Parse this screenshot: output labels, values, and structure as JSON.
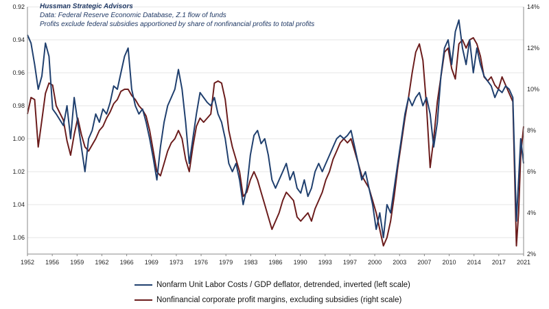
{
  "notes": {
    "source_name": "Hussman Strategic Advisors",
    "data_line": "Data: Federal Reserve Economic Database, Z.1 flow of funds",
    "profit_note": "Profits exclude federal subsidies apportioned by share of nonfinancial profits to total profits"
  },
  "colors": {
    "ulc": "#1f3f6e",
    "margin": "#6b1c1c",
    "grid": "#e6e6e6",
    "axis": "#888888"
  },
  "chart_data": {
    "type": "line",
    "x_ticks": [
      "1952",
      "1956",
      "1959",
      "1962",
      "1966",
      "1969",
      "1973",
      "1976",
      "1979",
      "1983",
      "1986",
      "1990",
      "1993",
      "1997",
      "2000",
      "2003",
      "2007",
      "2010",
      "2014",
      "2017",
      "2021"
    ],
    "x_range": [
      1952,
      2021
    ],
    "left_axis": {
      "label": "",
      "ticks": [
        "0.92",
        "0.94",
        "0.96",
        "0.98",
        "1.00",
        "1.02",
        "1.04",
        "1.06"
      ],
      "range": [
        0.92,
        1.07
      ],
      "inverted": true
    },
    "right_axis": {
      "label": "",
      "ticks": [
        "2%",
        "4%",
        "6%",
        "8%",
        "10%",
        "12%",
        "14%"
      ],
      "range": [
        2,
        14
      ]
    },
    "series": [
      {
        "name": "Nonfarm Unit Labor Costs / GDP deflator, detrended, inverted (left scale)",
        "axis": "left",
        "points": [
          [
            1952,
            0.937
          ],
          [
            1952.5,
            0.942
          ],
          [
            1953,
            0.955
          ],
          [
            1953.5,
            0.97
          ],
          [
            1954,
            0.962
          ],
          [
            1954.5,
            0.942
          ],
          [
            1955,
            0.95
          ],
          [
            1955.5,
            0.982
          ],
          [
            1956,
            0.985
          ],
          [
            1957,
            0.992
          ],
          [
            1957.5,
            0.98
          ],
          [
            1958,
            1.0
          ],
          [
            1958.5,
            0.975
          ],
          [
            1959,
            0.99
          ],
          [
            1959.5,
            1.005
          ],
          [
            1960,
            1.02
          ],
          [
            1960.5,
            1.0
          ],
          [
            1961,
            0.995
          ],
          [
            1961.5,
            0.985
          ],
          [
            1962,
            0.99
          ],
          [
            1962.5,
            0.982
          ],
          [
            1963,
            0.985
          ],
          [
            1963.5,
            0.978
          ],
          [
            1964,
            0.968
          ],
          [
            1964.5,
            0.97
          ],
          [
            1965,
            0.96
          ],
          [
            1965.5,
            0.95
          ],
          [
            1966,
            0.945
          ],
          [
            1966.5,
            0.97
          ],
          [
            1967,
            0.98
          ],
          [
            1967.5,
            0.985
          ],
          [
            1968,
            0.982
          ],
          [
            1968.5,
            0.99
          ],
          [
            1969,
            1.0
          ],
          [
            1969.5,
            1.012
          ],
          [
            1970,
            1.025
          ],
          [
            1970.5,
            1.005
          ],
          [
            1971,
            0.99
          ],
          [
            1971.5,
            0.98
          ],
          [
            1972,
            0.975
          ],
          [
            1972.5,
            0.97
          ],
          [
            1973,
            0.958
          ],
          [
            1973.5,
            0.97
          ],
          [
            1974,
            0.99
          ],
          [
            1974.5,
            1.015
          ],
          [
            1975,
            1.0
          ],
          [
            1975.5,
            0.985
          ],
          [
            1976,
            0.972
          ],
          [
            1976.5,
            0.975
          ],
          [
            1977,
            0.978
          ],
          [
            1977.5,
            0.98
          ],
          [
            1978,
            0.975
          ],
          [
            1978.5,
            0.985
          ],
          [
            1979,
            0.99
          ],
          [
            1979.5,
            1.0
          ],
          [
            1980,
            1.015
          ],
          [
            1980.5,
            1.02
          ],
          [
            1981,
            1.015
          ],
          [
            1981.5,
            1.025
          ],
          [
            1982,
            1.04
          ],
          [
            1982.5,
            1.03
          ],
          [
            1983,
            1.01
          ],
          [
            1983.5,
            0.998
          ],
          [
            1984,
            0.995
          ],
          [
            1984.5,
            1.003
          ],
          [
            1985,
            1.0
          ],
          [
            1985.5,
            1.01
          ],
          [
            1986,
            1.025
          ],
          [
            1986.5,
            1.03
          ],
          [
            1987,
            1.025
          ],
          [
            1987.5,
            1.02
          ],
          [
            1988,
            1.015
          ],
          [
            1988.5,
            1.025
          ],
          [
            1989,
            1.02
          ],
          [
            1989.5,
            1.03
          ],
          [
            1990,
            1.033
          ],
          [
            1990.5,
            1.025
          ],
          [
            1991,
            1.035
          ],
          [
            1991.5,
            1.03
          ],
          [
            1992,
            1.02
          ],
          [
            1992.5,
            1.015
          ],
          [
            1993,
            1.02
          ],
          [
            1993.5,
            1.015
          ],
          [
            1994,
            1.01
          ],
          [
            1994.5,
            1.005
          ],
          [
            1995,
            1.0
          ],
          [
            1995.5,
            0.998
          ],
          [
            1996,
            1.0
          ],
          [
            1996.5,
            0.998
          ],
          [
            1997,
            0.995
          ],
          [
            1997.5,
            1.005
          ],
          [
            1998,
            1.015
          ],
          [
            1998.5,
            1.025
          ],
          [
            1999,
            1.02
          ],
          [
            1999.5,
            1.03
          ],
          [
            2000,
            1.04
          ],
          [
            2000.5,
            1.055
          ],
          [
            2001,
            1.045
          ],
          [
            2001.5,
            1.06
          ],
          [
            2002,
            1.04
          ],
          [
            2002.5,
            1.045
          ],
          [
            2003,
            1.03
          ],
          [
            2003.5,
            1.015
          ],
          [
            2004,
            1.0
          ],
          [
            2004.5,
            0.985
          ],
          [
            2005,
            0.975
          ],
          [
            2005.5,
            0.98
          ],
          [
            2006,
            0.975
          ],
          [
            2006.5,
            0.972
          ],
          [
            2007,
            0.98
          ],
          [
            2007.5,
            0.975
          ],
          [
            2008,
            0.985
          ],
          [
            2008.5,
            1.005
          ],
          [
            2009,
            0.99
          ],
          [
            2009.5,
            0.962
          ],
          [
            2010,
            0.945
          ],
          [
            2010.5,
            0.94
          ],
          [
            2011,
            0.955
          ],
          [
            2011.5,
            0.935
          ],
          [
            2012,
            0.928
          ],
          [
            2012.5,
            0.945
          ],
          [
            2013,
            0.955
          ],
          [
            2013.5,
            0.94
          ],
          [
            2014,
            0.96
          ],
          [
            2014.5,
            0.945
          ],
          [
            2015,
            0.955
          ],
          [
            2015.5,
            0.962
          ],
          [
            2016,
            0.965
          ],
          [
            2016.5,
            0.968
          ],
          [
            2017,
            0.975
          ],
          [
            2017.5,
            0.97
          ],
          [
            2018,
            0.972
          ],
          [
            2018.5,
            0.968
          ],
          [
            2019,
            0.97
          ],
          [
            2019.5,
            0.975
          ],
          [
            2020,
            1.05
          ],
          [
            2020.3,
            1.025
          ],
          [
            2020.6,
            1.0
          ],
          [
            2021,
            1.015
          ]
        ]
      },
      {
        "name": "Nonfinancial corporate profit margins, excluding subsidies (right scale)",
        "axis": "right",
        "points": [
          [
            1952,
            8.8
          ],
          [
            1952.5,
            9.6
          ],
          [
            1953,
            9.5
          ],
          [
            1953.5,
            7.2
          ],
          [
            1954,
            8.5
          ],
          [
            1954.5,
            9.8
          ],
          [
            1955,
            10.3
          ],
          [
            1955.5,
            10.2
          ],
          [
            1956,
            9.2
          ],
          [
            1957,
            8.5
          ],
          [
            1957.5,
            7.5
          ],
          [
            1958,
            6.8
          ],
          [
            1958.5,
            7.8
          ],
          [
            1959,
            8.6
          ],
          [
            1959.5,
            7.8
          ],
          [
            1960,
            7.2
          ],
          [
            1960.5,
            7.0
          ],
          [
            1961,
            7.3
          ],
          [
            1961.5,
            7.6
          ],
          [
            1962,
            8.0
          ],
          [
            1962.5,
            8.2
          ],
          [
            1963,
            8.6
          ],
          [
            1963.5,
            8.9
          ],
          [
            1964,
            9.3
          ],
          [
            1964.5,
            9.5
          ],
          [
            1965,
            9.9
          ],
          [
            1965.5,
            10.0
          ],
          [
            1966,
            10.0
          ],
          [
            1966.5,
            9.7
          ],
          [
            1967,
            9.5
          ],
          [
            1967.5,
            9.2
          ],
          [
            1968,
            9.0
          ],
          [
            1968.5,
            8.7
          ],
          [
            1969,
            8.0
          ],
          [
            1969.5,
            7.0
          ],
          [
            1970,
            6.0
          ],
          [
            1970.5,
            5.8
          ],
          [
            1971,
            6.4
          ],
          [
            1971.5,
            7.0
          ],
          [
            1972,
            7.4
          ],
          [
            1972.5,
            7.6
          ],
          [
            1973,
            8.0
          ],
          [
            1973.5,
            7.6
          ],
          [
            1974,
            6.6
          ],
          [
            1974.5,
            6.0
          ],
          [
            1975,
            7.2
          ],
          [
            1975.5,
            8.2
          ],
          [
            1976,
            8.6
          ],
          [
            1976.5,
            8.4
          ],
          [
            1977,
            8.6
          ],
          [
            1977.5,
            8.8
          ],
          [
            1978,
            10.3
          ],
          [
            1978.5,
            10.4
          ],
          [
            1979,
            10.3
          ],
          [
            1979.5,
            9.5
          ],
          [
            1980,
            8.0
          ],
          [
            1980.5,
            7.2
          ],
          [
            1981,
            6.6
          ],
          [
            1981.5,
            6.0
          ],
          [
            1982,
            4.8
          ],
          [
            1982.5,
            5.0
          ],
          [
            1983,
            5.6
          ],
          [
            1983.5,
            6.0
          ],
          [
            1984,
            5.6
          ],
          [
            1984.5,
            5.0
          ],
          [
            1985,
            4.4
          ],
          [
            1985.5,
            3.8
          ],
          [
            1986,
            3.2
          ],
          [
            1986.5,
            3.6
          ],
          [
            1987,
            4.0
          ],
          [
            1987.5,
            4.6
          ],
          [
            1988,
            5.0
          ],
          [
            1988.5,
            4.8
          ],
          [
            1989,
            4.6
          ],
          [
            1989.5,
            3.8
          ],
          [
            1990,
            3.6
          ],
          [
            1990.5,
            3.8
          ],
          [
            1991,
            4.0
          ],
          [
            1991.5,
            3.6
          ],
          [
            1992,
            4.2
          ],
          [
            1992.5,
            4.6
          ],
          [
            1993,
            5.0
          ],
          [
            1993.5,
            5.6
          ],
          [
            1994,
            6.0
          ],
          [
            1994.5,
            6.6
          ],
          [
            1995,
            7.0
          ],
          [
            1995.5,
            7.4
          ],
          [
            1996,
            7.6
          ],
          [
            1996.5,
            7.4
          ],
          [
            1997,
            7.6
          ],
          [
            1997.5,
            7.0
          ],
          [
            1998,
            6.4
          ],
          [
            1998.5,
            5.8
          ],
          [
            1999,
            5.5
          ],
          [
            1999.5,
            5.2
          ],
          [
            2000,
            4.6
          ],
          [
            2000.5,
            4.0
          ],
          [
            2001,
            3.2
          ],
          [
            2001.5,
            2.4
          ],
          [
            2002,
            2.8
          ],
          [
            2002.5,
            3.6
          ],
          [
            2003,
            4.8
          ],
          [
            2003.5,
            6.2
          ],
          [
            2004,
            7.4
          ],
          [
            2004.5,
            8.6
          ],
          [
            2005,
            9.6
          ],
          [
            2005.5,
            10.8
          ],
          [
            2006,
            11.8
          ],
          [
            2006.5,
            12.2
          ],
          [
            2007,
            11.4
          ],
          [
            2007.5,
            9.2
          ],
          [
            2008,
            6.2
          ],
          [
            2008.5,
            7.6
          ],
          [
            2009,
            9.4
          ],
          [
            2009.5,
            10.6
          ],
          [
            2010,
            11.8
          ],
          [
            2010.5,
            12.0
          ],
          [
            2011,
            11.0
          ],
          [
            2011.5,
            10.5
          ],
          [
            2012,
            12.2
          ],
          [
            2012.5,
            12.4
          ],
          [
            2013,
            12.0
          ],
          [
            2013.5,
            12.4
          ],
          [
            2014,
            12.5
          ],
          [
            2014.5,
            12.2
          ],
          [
            2015,
            11.6
          ],
          [
            2015.5,
            10.6
          ],
          [
            2016,
            10.4
          ],
          [
            2016.5,
            10.6
          ],
          [
            2017,
            10.2
          ],
          [
            2017.5,
            10.0
          ],
          [
            2018,
            10.6
          ],
          [
            2018.5,
            10.2
          ],
          [
            2019,
            9.8
          ],
          [
            2019.5,
            9.4
          ],
          [
            2020,
            2.4
          ],
          [
            2020.3,
            4.0
          ],
          [
            2020.6,
            6.8
          ],
          [
            2021,
            8.2
          ]
        ]
      }
    ]
  }
}
